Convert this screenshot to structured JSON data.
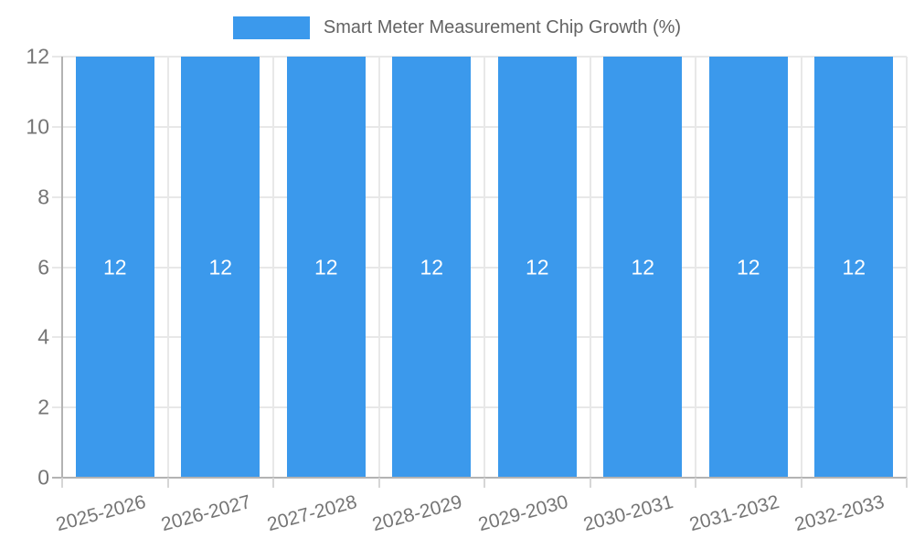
{
  "legend": {
    "label": "Smart Meter Measurement Chip Growth (%)"
  },
  "chart_data": {
    "type": "bar",
    "title": "Smart Meter Measurement Chip Growth (%)",
    "categories": [
      "2025-2026",
      "2026-2027",
      "2027-2028",
      "2028-2029",
      "2029-2030",
      "2030-2031",
      "2031-2032",
      "2032-2033"
    ],
    "series": [
      {
        "name": "Smart Meter Measurement Chip Growth (%)",
        "values": [
          12,
          12,
          12,
          12,
          12,
          12,
          12,
          12
        ]
      }
    ],
    "bar_labels": [
      "12",
      "12",
      "12",
      "12",
      "12",
      "12",
      "12",
      "12"
    ],
    "xlabel": "",
    "ylabel": "",
    "ylim": [
      0,
      12
    ],
    "yticks": [
      0,
      2,
      4,
      6,
      8,
      10,
      12
    ],
    "grid": true,
    "legend_position": "top",
    "colors": {
      "bar": "#3B99EC",
      "bar_label": "#FFFFFF",
      "axis_text": "#757575",
      "grid": "#E8E8E8",
      "axis_line": "#B3B3B3",
      "tick_mark": "#D6D6D6",
      "legend_text": "#636363"
    }
  }
}
